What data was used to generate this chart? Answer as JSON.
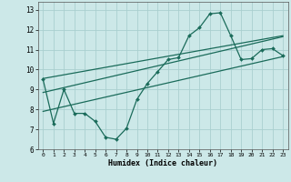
{
  "xlabel": "Humidex (Indice chaleur)",
  "bg_color": "#cce8e8",
  "grid_color": "#aacfcf",
  "line_color": "#1a6b5a",
  "xlim": [
    -0.5,
    23.5
  ],
  "ylim": [
    6,
    13.4
  ],
  "yticks": [
    6,
    7,
    8,
    9,
    10,
    11,
    12,
    13
  ],
  "xticks": [
    0,
    1,
    2,
    3,
    4,
    5,
    6,
    7,
    8,
    9,
    10,
    11,
    12,
    13,
    14,
    15,
    16,
    17,
    18,
    19,
    20,
    21,
    22,
    23
  ],
  "main_x": [
    0,
    1,
    2,
    3,
    4,
    5,
    6,
    7,
    8,
    9,
    10,
    11,
    12,
    13,
    14,
    15,
    16,
    17,
    18,
    19,
    20,
    21,
    22,
    23
  ],
  "main_y": [
    9.5,
    7.3,
    9.0,
    7.8,
    7.8,
    7.4,
    6.6,
    6.5,
    7.05,
    8.5,
    9.3,
    9.9,
    10.5,
    10.6,
    11.7,
    12.1,
    12.8,
    12.85,
    11.7,
    10.5,
    10.55,
    11.0,
    11.05,
    10.7
  ],
  "line1_x": [
    0,
    23
  ],
  "line1_y": [
    8.85,
    11.65
  ],
  "line2_x": [
    0,
    23
  ],
  "line2_y": [
    9.55,
    11.7
  ],
  "line3_x": [
    0,
    23
  ],
  "line3_y": [
    7.9,
    10.65
  ]
}
